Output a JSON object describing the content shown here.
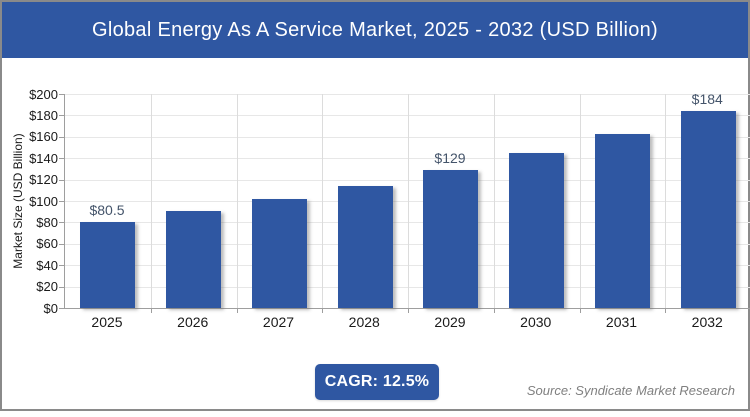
{
  "banner": {
    "title": "Global Energy As A Service Market, 2025 - 2032 (USD Billion)",
    "bg_color": "#2f57a2",
    "text_color": "#ffffff"
  },
  "chart_data": {
    "type": "bar",
    "title": "Global Energy As A Service Market, 2025 - 2032 (USD Billion)",
    "categories": [
      "2025",
      "2026",
      "2027",
      "2028",
      "2029",
      "2030",
      "2031",
      "2032"
    ],
    "values": [
      80.5,
      90.5,
      102,
      114.5,
      129,
      145,
      163,
      184
    ],
    "data_labels": [
      "$80.5",
      "",
      "",
      "",
      "$129",
      "",
      "",
      "$184"
    ],
    "xlabel": "",
    "ylabel": "Market Size (USD Billion)",
    "ylim": [
      0,
      200
    ],
    "ytick_step": 20,
    "ytick_labels": [
      "$0",
      "$20",
      "$40",
      "$60",
      "$80",
      "$100",
      "$120",
      "$140",
      "$160",
      "$180",
      "$200"
    ],
    "grid": true,
    "legend": false,
    "bar_color": "#2f57a2",
    "data_label_color": "#44546a"
  },
  "footer": {
    "cagr_label": "CAGR: 12.5%",
    "source": "Source: Syndicate Market Research"
  }
}
